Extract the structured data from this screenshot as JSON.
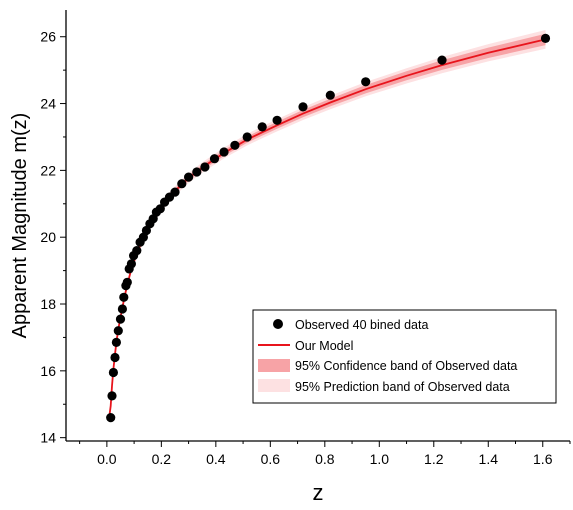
{
  "chart_data": {
    "type": "scatter",
    "xlabel": "z",
    "ylabel": "Apparent Magnitude m(z)",
    "xlim": [
      -0.15,
      1.7
    ],
    "ylim": [
      13.9,
      26.8
    ],
    "xticks": [
      "0.0",
      "0.2",
      "0.4",
      "0.6",
      "0.8",
      "1.0",
      "1.2",
      "1.4",
      "1.6"
    ],
    "yticks": [
      "14",
      "16",
      "18",
      "20",
      "22",
      "24",
      "26"
    ],
    "legend_position": "bottom-right",
    "legend": {
      "observed": "Observed 40 bined data",
      "model": "Our Model",
      "confidence": "95% Confidence band of Observed data",
      "prediction": "95% Prediction band of Observed data"
    },
    "colors": {
      "points": "#000000",
      "model": "#e8141c",
      "confidence": "#f7a3a6",
      "prediction": "#fde1e2"
    },
    "series": [
      {
        "name": "Observed 40 bined data",
        "points": [
          [
            0.014,
            14.6
          ],
          [
            0.019,
            15.25
          ],
          [
            0.024,
            15.95
          ],
          [
            0.03,
            16.4
          ],
          [
            0.035,
            16.85
          ],
          [
            0.042,
            17.2
          ],
          [
            0.05,
            17.55
          ],
          [
            0.057,
            17.85
          ],
          [
            0.062,
            18.2
          ],
          [
            0.07,
            18.55
          ],
          [
            0.075,
            18.65
          ],
          [
            0.082,
            19.05
          ],
          [
            0.09,
            19.2
          ],
          [
            0.098,
            19.45
          ],
          [
            0.11,
            19.6
          ],
          [
            0.122,
            19.85
          ],
          [
            0.134,
            20.0
          ],
          [
            0.145,
            20.2
          ],
          [
            0.158,
            20.4
          ],
          [
            0.17,
            20.55
          ],
          [
            0.182,
            20.75
          ],
          [
            0.196,
            20.85
          ],
          [
            0.212,
            21.05
          ],
          [
            0.23,
            21.2
          ],
          [
            0.25,
            21.35
          ],
          [
            0.275,
            21.6
          ],
          [
            0.3,
            21.8
          ],
          [
            0.33,
            21.95
          ],
          [
            0.36,
            22.1
          ],
          [
            0.395,
            22.35
          ],
          [
            0.43,
            22.55
          ],
          [
            0.47,
            22.75
          ],
          [
            0.515,
            23.0
          ],
          [
            0.57,
            23.3
          ],
          [
            0.625,
            23.5
          ],
          [
            0.72,
            23.9
          ],
          [
            0.82,
            24.25
          ],
          [
            0.95,
            24.65
          ],
          [
            1.23,
            25.3
          ],
          [
            1.61,
            25.95
          ]
        ]
      }
    ],
    "model_curve": {
      "name": "Our Model",
      "x": [
        0.01,
        0.014,
        0.019,
        0.024,
        0.03,
        0.035,
        0.042,
        0.05,
        0.057,
        0.062,
        0.07,
        0.075,
        0.082,
        0.09,
        0.098,
        0.11,
        0.122,
        0.134,
        0.145,
        0.158,
        0.17,
        0.182,
        0.196,
        0.212,
        0.23,
        0.25,
        0.275,
        0.3,
        0.33,
        0.36,
        0.395,
        0.43,
        0.47,
        0.515,
        0.57,
        0.625,
        0.72,
        0.82,
        0.95,
        1.1,
        1.23,
        1.4,
        1.61
      ],
      "y": [
        14.7,
        14.95,
        15.55,
        16.05,
        16.5,
        16.85,
        17.25,
        17.6,
        17.9,
        18.1,
        18.4,
        18.55,
        18.8,
        19.05,
        19.25,
        19.5,
        19.75,
        19.97,
        20.15,
        20.35,
        20.52,
        20.68,
        20.84,
        21.02,
        21.2,
        21.38,
        21.58,
        21.77,
        21.96,
        22.14,
        22.33,
        22.52,
        22.71,
        22.92,
        23.14,
        23.35,
        23.7,
        24.03,
        24.43,
        24.83,
        25.15,
        25.52,
        25.92
      ]
    },
    "band_halfwidth": {
      "confidence_at": [
        [
          0.0,
          0.06
        ],
        [
          1.61,
          0.17
        ]
      ],
      "prediction_at": [
        [
          0.0,
          0.12
        ],
        [
          1.61,
          0.28
        ]
      ]
    }
  }
}
